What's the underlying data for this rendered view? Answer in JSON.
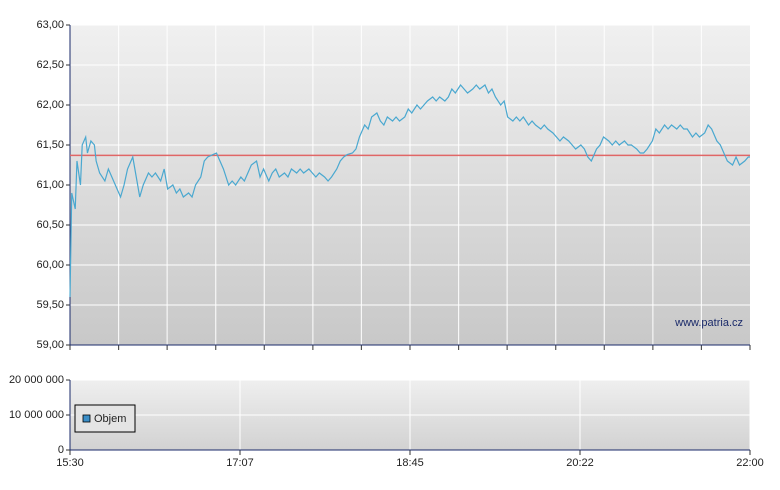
{
  "chart_data": [
    {
      "type": "line",
      "annotation": "www.patria.cz",
      "xlim": [
        930,
        1320
      ],
      "minor_xticks": [
        957.9,
        985.7,
        1013.6,
        1041.4,
        1069.3,
        1097.1,
        1125,
        1152.9,
        1180.7,
        1208.6,
        1236.4,
        1264.3,
        1292.1
      ],
      "ylim": [
        59,
        63
      ],
      "yticks": [
        {
          "value": 59,
          "label": "59,00"
        },
        {
          "value": 59.5,
          "label": "59,50"
        },
        {
          "value": 60,
          "label": "60,00"
        },
        {
          "value": 60.5,
          "label": "60,50"
        },
        {
          "value": 61,
          "label": "61,00"
        },
        {
          "value": 61.5,
          "label": "61,50"
        },
        {
          "value": 62,
          "label": "62,00"
        },
        {
          "value": 62.5,
          "label": "62,50"
        },
        {
          "value": 63,
          "label": "63,00"
        }
      ],
      "grid": true,
      "reference_line": {
        "value": 61.37,
        "color": "#e06666"
      },
      "x": [
        930,
        931,
        933,
        934,
        936,
        937,
        939,
        940,
        942,
        944,
        945,
        947,
        950,
        952,
        954,
        956,
        959,
        961,
        963,
        966,
        968,
        970,
        972,
        975,
        977,
        979,
        982,
        984,
        986,
        989,
        991,
        993,
        995,
        998,
        1000,
        1002,
        1005,
        1007,
        1009,
        1012,
        1014,
        1016,
        1018,
        1021,
        1023,
        1025,
        1028,
        1030,
        1032,
        1034,
        1037,
        1039,
        1041,
        1044,
        1046,
        1048,
        1050,
        1053,
        1055,
        1057,
        1060,
        1062,
        1064,
        1067,
        1069,
        1071,
        1073,
        1076,
        1078,
        1080,
        1083,
        1085,
        1087,
        1089,
        1092,
        1094,
        1096,
        1099,
        1101,
        1103,
        1106,
        1108,
        1110,
        1112,
        1115,
        1117,
        1119,
        1122,
        1124,
        1126,
        1129,
        1131,
        1133,
        1135,
        1138,
        1140,
        1142,
        1145,
        1147,
        1149,
        1151,
        1154,
        1156,
        1158,
        1161,
        1163,
        1165,
        1168,
        1170,
        1172,
        1174,
        1177,
        1179,
        1181,
        1184,
        1186,
        1188,
        1190,
        1193,
        1195,
        1197,
        1200,
        1202,
        1204,
        1207,
        1209,
        1211,
        1213,
        1216,
        1218,
        1220,
        1223,
        1225,
        1227,
        1229,
        1232,
        1234,
        1236,
        1239,
        1241,
        1243,
        1245,
        1248,
        1250,
        1252,
        1255,
        1257,
        1259,
        1261,
        1264,
        1266,
        1268,
        1271,
        1273,
        1275,
        1278,
        1280,
        1282,
        1284,
        1287,
        1289,
        1291,
        1294,
        1296,
        1298,
        1301,
        1303,
        1305,
        1307,
        1310,
        1312,
        1314,
        1317,
        1319,
        1320
      ],
      "series": [
        {
          "color": "#4aa8d0",
          "values": [
            59.6,
            60.9,
            60.7,
            61.3,
            61.0,
            61.5,
            61.6,
            61.4,
            61.55,
            61.5,
            61.3,
            61.15,
            61.05,
            61.2,
            61.1,
            61.0,
            60.85,
            61.0,
            61.2,
            61.35,
            61.1,
            60.85,
            61.0,
            61.15,
            61.1,
            61.15,
            61.05,
            61.2,
            60.95,
            61.0,
            60.9,
            60.95,
            60.85,
            60.9,
            60.85,
            61.0,
            61.1,
            61.3,
            61.35,
            61.38,
            61.4,
            61.3,
            61.2,
            61.0,
            61.05,
            61.0,
            61.1,
            61.05,
            61.15,
            61.25,
            61.3,
            61.1,
            61.2,
            61.05,
            61.15,
            61.2,
            61.1,
            61.15,
            61.1,
            61.2,
            61.15,
            61.2,
            61.15,
            61.2,
            61.15,
            61.1,
            61.15,
            61.1,
            61.05,
            61.1,
            61.2,
            61.3,
            61.35,
            61.38,
            61.4,
            61.45,
            61.6,
            61.75,
            61.7,
            61.85,
            61.9,
            61.8,
            61.75,
            61.85,
            61.8,
            61.85,
            61.8,
            61.85,
            61.95,
            61.9,
            62.0,
            61.95,
            62.0,
            62.05,
            62.1,
            62.05,
            62.1,
            62.05,
            62.1,
            62.2,
            62.15,
            62.25,
            62.2,
            62.15,
            62.2,
            62.25,
            62.2,
            62.25,
            62.15,
            62.2,
            62.1,
            62.0,
            62.05,
            61.85,
            61.8,
            61.85,
            61.8,
            61.85,
            61.75,
            61.8,
            61.75,
            61.7,
            61.75,
            61.7,
            61.65,
            61.6,
            61.55,
            61.6,
            61.55,
            61.5,
            61.45,
            61.5,
            61.45,
            61.35,
            61.3,
            61.45,
            61.5,
            61.6,
            61.55,
            61.5,
            61.55,
            61.5,
            61.55,
            61.5,
            61.5,
            61.45,
            61.4,
            61.4,
            61.45,
            61.55,
            61.7,
            61.65,
            61.75,
            61.7,
            61.75,
            61.7,
            61.75,
            61.7,
            61.7,
            61.6,
            61.65,
            61.6,
            61.65,
            61.75,
            61.7,
            61.55,
            61.5,
            61.4,
            61.3,
            61.25,
            61.35,
            61.25,
            61.3,
            61.35,
            61.35
          ]
        }
      ]
    },
    {
      "type": "bar",
      "xlim": [
        930,
        1320
      ],
      "xticks": [
        {
          "value": 930,
          "label": "15:30"
        },
        {
          "value": 1027.5,
          "label": "17:07"
        },
        {
          "value": 1125,
          "label": "18:45"
        },
        {
          "value": 1222.5,
          "label": "20:22"
        },
        {
          "value": 1320,
          "label": "22:00"
        }
      ],
      "ylim": [
        0,
        20000000
      ],
      "yticks": [
        0,
        {
          "value": 10000000,
          "label": "10 000 000"
        },
        {
          "value": 20000000,
          "label": "20 000 000"
        }
      ],
      "grid": true,
      "legend": "lower-left",
      "x": [],
      "series": [
        {
          "name": "Objem",
          "color": "#3a8ec8",
          "values": []
        }
      ]
    }
  ]
}
